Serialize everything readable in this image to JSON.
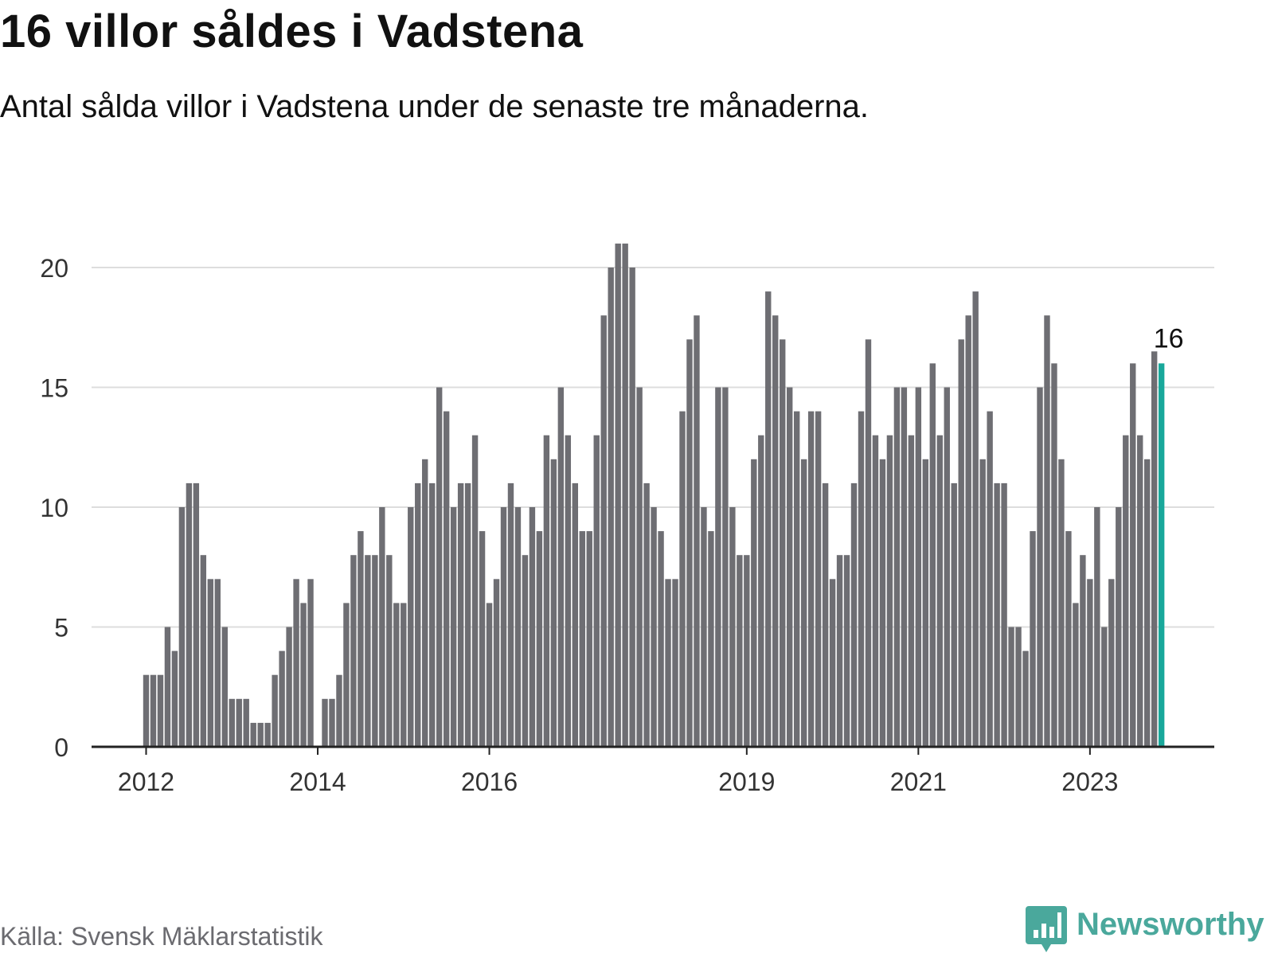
{
  "title": "16 villor såldes i Vadstena",
  "subtitle": "Antal sålda villor i Vadstena under de senaste tre månaderna.",
  "source": "Källa: Svensk Mäklarstatistik",
  "brand": {
    "name": "Newsworthy",
    "icon": "newsworthy-logo-icon",
    "color": "#4aa89c"
  },
  "colors": {
    "bar": "#6e6e73",
    "highlight": "#19a89b",
    "grid": "#dddddd",
    "axis": "#222222",
    "text": "#333333"
  },
  "chart_data": {
    "type": "bar",
    "title": "16 villor såldes i Vadstena",
    "subtitle": "Antal sålda villor i Vadstena under de senaste tre månaderna.",
    "xlabel": "",
    "ylabel": "",
    "ylim": [
      0,
      22
    ],
    "yticks": [
      0,
      5,
      10,
      15,
      20
    ],
    "grid": true,
    "x_start": "2012-01",
    "x_end": "2023-12",
    "xtick_labels": [
      {
        "label": "2012",
        "date": "2012-01"
      },
      {
        "label": "2014",
        "date": "2014-01"
      },
      {
        "label": "2016",
        "date": "2016-01"
      },
      {
        "label": "2019",
        "date": "2019-01"
      },
      {
        "label": "2021",
        "date": "2021-01"
      },
      {
        "label": "2023",
        "date": "2023-01"
      }
    ],
    "values": [
      3,
      3,
      3,
      5,
      4,
      10,
      11,
      11,
      8,
      7,
      7,
      5,
      2,
      2,
      2,
      1,
      1,
      1,
      3,
      4,
      5,
      7,
      6,
      7,
      0,
      2,
      2,
      3,
      6,
      8,
      9,
      8,
      8,
      10,
      8,
      6,
      6,
      10,
      11,
      12,
      11,
      15,
      14,
      10,
      11,
      11,
      13,
      9,
      6,
      7,
      10,
      11,
      10,
      8,
      10,
      9,
      13,
      12,
      15,
      13,
      11,
      9,
      9,
      13,
      18,
      20,
      21,
      21,
      20,
      15,
      11,
      10,
      9,
      7,
      7,
      14,
      17,
      18,
      10,
      9,
      15,
      15,
      10,
      8,
      8,
      12,
      13,
      19,
      18,
      17,
      15,
      14,
      12,
      14,
      14,
      11,
      7,
      8,
      8,
      11,
      14,
      17,
      13,
      12,
      13,
      15,
      15,
      13,
      15,
      12,
      16,
      13,
      15,
      11,
      17,
      18,
      19,
      12,
      14,
      11,
      11,
      5,
      5,
      4,
      9,
      15,
      18,
      16,
      12,
      9,
      6,
      8,
      7,
      10,
      5,
      7,
      10,
      13,
      16,
      13,
      12,
      16.5,
      16
    ],
    "highlight": {
      "label": "16",
      "value": 16,
      "date": "2023-12"
    }
  }
}
